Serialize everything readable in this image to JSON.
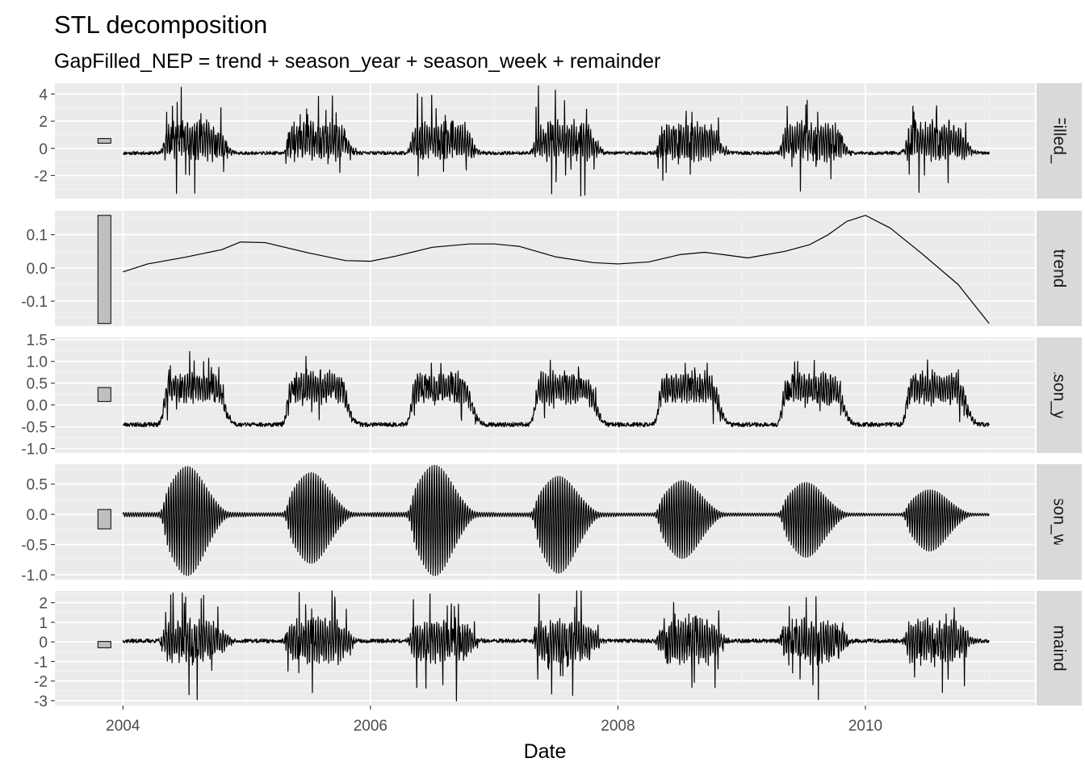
{
  "chart_data": {
    "type": "line",
    "title": "STL decomposition",
    "subtitle": "GapFilled_NEP = trend + season_year + season_week + remainder",
    "xlabel": "Date",
    "ylabel": "",
    "x_ticks": [
      "2004",
      "2006",
      "2008",
      "2010"
    ],
    "x_tick_values": [
      2004,
      2006,
      2008,
      2010
    ],
    "xlim": [
      2003.45,
      2011.37
    ],
    "x_range": [
      2004.0,
      2011.0
    ],
    "grid": true,
    "background": "#ebebeb",
    "strip_color": "#d9d9d9",
    "line_color": "#000000",
    "scale_bar_fill": "#bfbfbf",
    "facets": [
      {
        "name": "GapFilled_NEP",
        "ylim": [
          -3.7,
          4.8
        ],
        "y_ticks": [
          -2,
          0,
          2,
          4
        ],
        "y_tick_labels": [
          "-2",
          "0",
          "2",
          "4"
        ],
        "scale_bar": [
          0.38,
          0.72
        ],
        "profile": {
          "base": -0.35,
          "active_mean": 0.9,
          "amp": 2.0,
          "spike_amp": 3.2,
          "noise": 0.12,
          "seed": 11
        },
        "peaks": [
          [
            2004.47,
            4.5
          ],
          [
            2004.58,
            -3.3
          ],
          [
            2007.7,
            -3.5
          ],
          [
            2005.64,
            2.8
          ]
        ]
      },
      {
        "name": "trend",
        "ylim": [
          -0.175,
          0.172
        ],
        "y_ticks": [
          -0.1,
          0.0,
          0.1
        ],
        "y_tick_labels": [
          "-0.1",
          "0.0",
          "0.1"
        ],
        "scale_bar": [
          -0.167,
          0.158
        ],
        "trend_points": [
          [
            2004.0,
            -0.012
          ],
          [
            2004.2,
            0.012
          ],
          [
            2004.5,
            0.032
          ],
          [
            2004.8,
            0.055
          ],
          [
            2004.95,
            0.078
          ],
          [
            2005.15,
            0.076
          ],
          [
            2005.5,
            0.045
          ],
          [
            2005.8,
            0.022
          ],
          [
            2006.0,
            0.02
          ],
          [
            2006.2,
            0.035
          ],
          [
            2006.5,
            0.062
          ],
          [
            2006.8,
            0.072
          ],
          [
            2007.0,
            0.072
          ],
          [
            2007.2,
            0.065
          ],
          [
            2007.5,
            0.033
          ],
          [
            2007.8,
            0.016
          ],
          [
            2008.0,
            0.012
          ],
          [
            2008.25,
            0.018
          ],
          [
            2008.5,
            0.04
          ],
          [
            2008.7,
            0.047
          ],
          [
            2008.85,
            0.04
          ],
          [
            2009.05,
            0.03
          ],
          [
            2009.35,
            0.05
          ],
          [
            2009.55,
            0.07
          ],
          [
            2009.7,
            0.1
          ],
          [
            2009.85,
            0.14
          ],
          [
            2010.0,
            0.158
          ],
          [
            2010.2,
            0.12
          ],
          [
            2010.45,
            0.045
          ],
          [
            2010.75,
            -0.05
          ],
          [
            2011.0,
            -0.167
          ]
        ]
      },
      {
        "name": "season_year",
        "ylim": [
          -1.1,
          1.55
        ],
        "y_ticks": [
          -1.0,
          -0.5,
          0.0,
          0.5,
          1.0,
          1.5
        ],
        "y_tick_labels": [
          "-1.0",
          "-0.5",
          "0.0",
          "0.5",
          "1.0",
          "1.5"
        ],
        "scale_bar": [
          0.08,
          0.4
        ],
        "profile": {
          "base": -0.45,
          "active_mean": 0.85,
          "amp": 0.5,
          "spike_amp": 0.55,
          "noise": 0.05,
          "seed": 23
        }
      },
      {
        "name": "season_week",
        "ylim": [
          -1.08,
          0.83
        ],
        "y_ticks": [
          -1.0,
          -0.5,
          0.0,
          0.5
        ],
        "y_tick_labels": [
          "-1.0",
          "-0.5",
          "0.0",
          "0.5"
        ],
        "scale_bar": [
          -0.24,
          0.08
        ],
        "week_amps": [
          [
            0.78,
            -1.0
          ],
          [
            0.68,
            -0.8
          ],
          [
            0.8,
            -1.0
          ],
          [
            0.62,
            -0.96
          ],
          [
            0.55,
            -0.72
          ],
          [
            0.52,
            -0.7
          ],
          [
            0.4,
            -0.6
          ]
        ]
      },
      {
        "name": "remainder",
        "ylim": [
          -3.25,
          2.6
        ],
        "y_ticks": [
          -3,
          -2,
          -1,
          0,
          1,
          2
        ],
        "y_tick_labels": [
          "-3",
          "-2",
          "-1",
          "0",
          "1",
          "2"
        ],
        "scale_bar": [
          -0.3,
          0.02
        ],
        "profile": {
          "base": 0.05,
          "active_mean": 0.0,
          "amp": 1.6,
          "spike_amp": 2.4,
          "noise": 0.1,
          "seed": 37
        },
        "peaks": [
          [
            2004.6,
            -2.95
          ],
          [
            2004.48,
            2.5
          ],
          [
            2009.6,
            2.3
          ],
          [
            2009.62,
            -2.95
          ]
        ]
      }
    ]
  }
}
